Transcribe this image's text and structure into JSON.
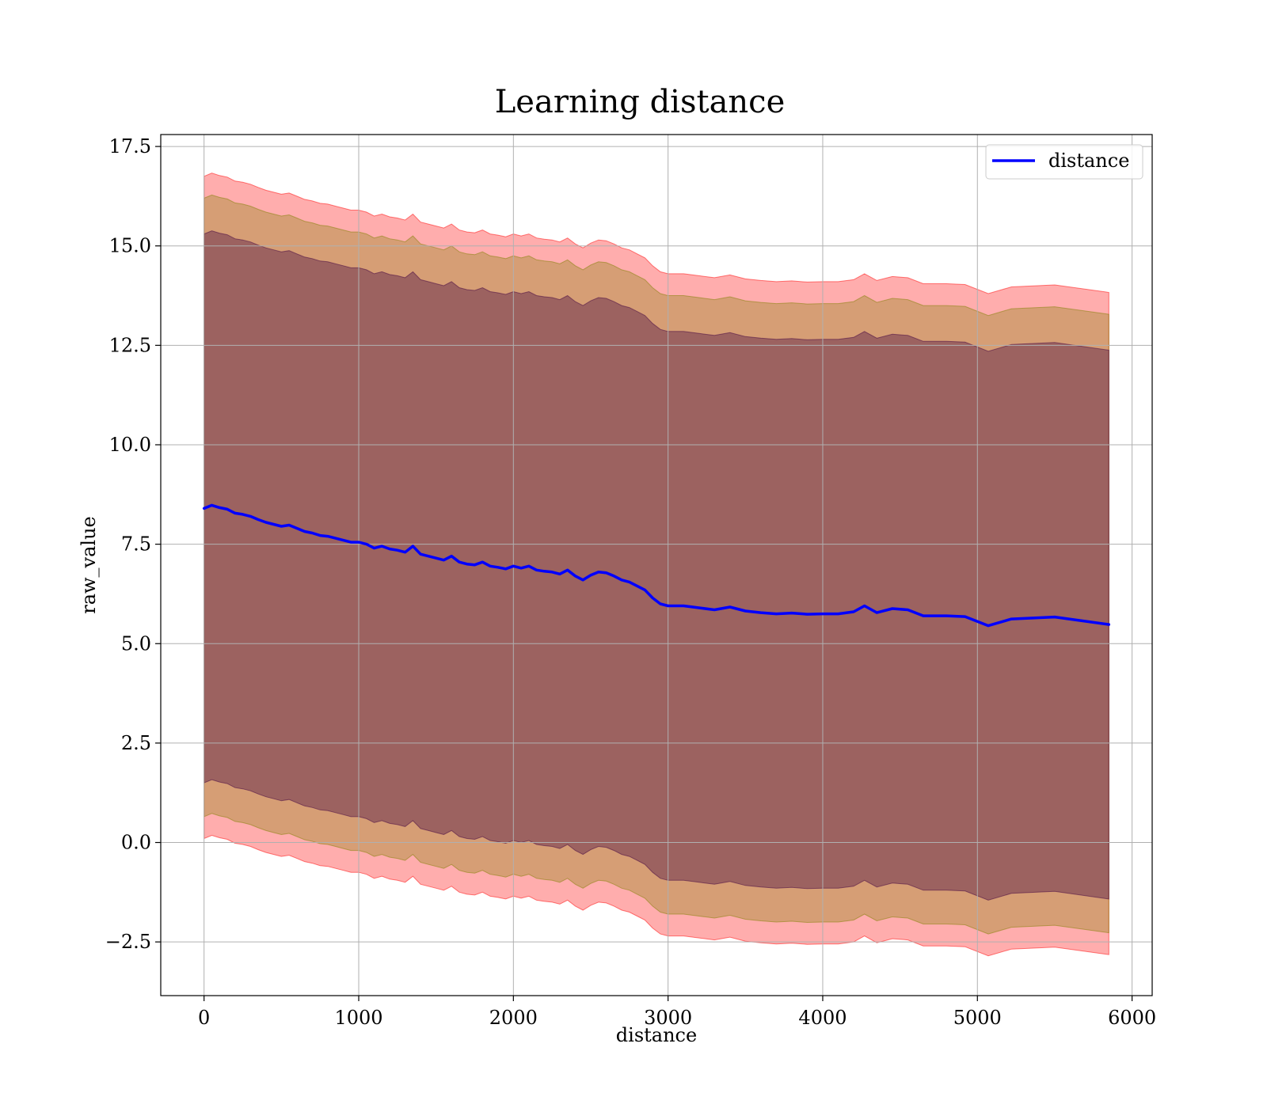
{
  "chart_data": {
    "type": "line",
    "title": "Learning distance",
    "xlabel": "distance",
    "ylabel": "raw_value",
    "xlim": [
      -280,
      6130
    ],
    "ylim": [
      -3.85,
      17.8
    ],
    "xticks": [
      0,
      1000,
      2000,
      3000,
      4000,
      5000,
      6000
    ],
    "xtick_labels": [
      "0",
      "1000",
      "2000",
      "3000",
      "4000",
      "5000",
      "6000"
    ],
    "yticks": [
      -2.5,
      0.0,
      2.5,
      5.0,
      7.5,
      10.0,
      12.5,
      15.0,
      17.5
    ],
    "ytick_labels": [
      "−2.5",
      "0.0",
      "2.5",
      "5.0",
      "7.5",
      "10.0",
      "12.5",
      "15.0",
      "17.5"
    ],
    "grid": true,
    "legend": {
      "position": "top-right",
      "entries": [
        "distance"
      ]
    },
    "colors": {
      "line": "#0000ff",
      "band_outer": "#ff0000",
      "band_middle": "#808000",
      "band_inner": "#400040",
      "grid": "#b0b0b0"
    },
    "series": [
      {
        "name": "distance",
        "x": [
          0,
          50,
          100,
          150,
          200,
          250,
          300,
          350,
          400,
          450,
          500,
          550,
          600,
          650,
          700,
          750,
          800,
          850,
          900,
          950,
          1000,
          1050,
          1100,
          1150,
          1200,
          1250,
          1300,
          1350,
          1400,
          1450,
          1500,
          1550,
          1600,
          1650,
          1700,
          1750,
          1800,
          1850,
          1900,
          1950,
          2000,
          2050,
          2100,
          2150,
          2200,
          2250,
          2300,
          2350,
          2400,
          2450,
          2500,
          2550,
          2600,
          2650,
          2700,
          2750,
          2800,
          2850,
          2900,
          2950,
          3000,
          3100,
          3200,
          3300,
          3400,
          3500,
          3600,
          3700,
          3800,
          3900,
          4000,
          4100,
          4200,
          4270,
          4350,
          4450,
          4550,
          4650,
          4800,
          4920,
          5070,
          5220,
          5500,
          5850
        ],
        "y": [
          8.4,
          8.48,
          8.42,
          8.38,
          8.28,
          8.25,
          8.2,
          8.12,
          8.05,
          8.0,
          7.95,
          7.98,
          7.9,
          7.82,
          7.78,
          7.72,
          7.7,
          7.65,
          7.6,
          7.55,
          7.55,
          7.5,
          7.4,
          7.45,
          7.38,
          7.35,
          7.3,
          7.45,
          7.25,
          7.2,
          7.15,
          7.1,
          7.2,
          7.05,
          7.0,
          6.98,
          7.05,
          6.95,
          6.92,
          6.88,
          6.95,
          6.9,
          6.95,
          6.85,
          6.82,
          6.8,
          6.75,
          6.85,
          6.7,
          6.6,
          6.72,
          6.8,
          6.78,
          6.7,
          6.6,
          6.55,
          6.45,
          6.35,
          6.15,
          6.0,
          5.95,
          5.95,
          5.9,
          5.85,
          5.92,
          5.82,
          5.78,
          5.75,
          5.77,
          5.74,
          5.75,
          5.75,
          5.8,
          5.95,
          5.78,
          5.88,
          5.85,
          5.7,
          5.7,
          5.68,
          5.45,
          5.62,
          5.67,
          5.48
        ]
      }
    ],
    "bands": [
      {
        "label": "outer",
        "lower_offset": -8.3,
        "upper_offset": 8.35
      },
      {
        "label": "middle",
        "lower_offset": -7.75,
        "upper_offset": 7.8
      },
      {
        "label": "inner",
        "lower_offset": -6.9,
        "upper_offset": 6.9
      }
    ]
  }
}
